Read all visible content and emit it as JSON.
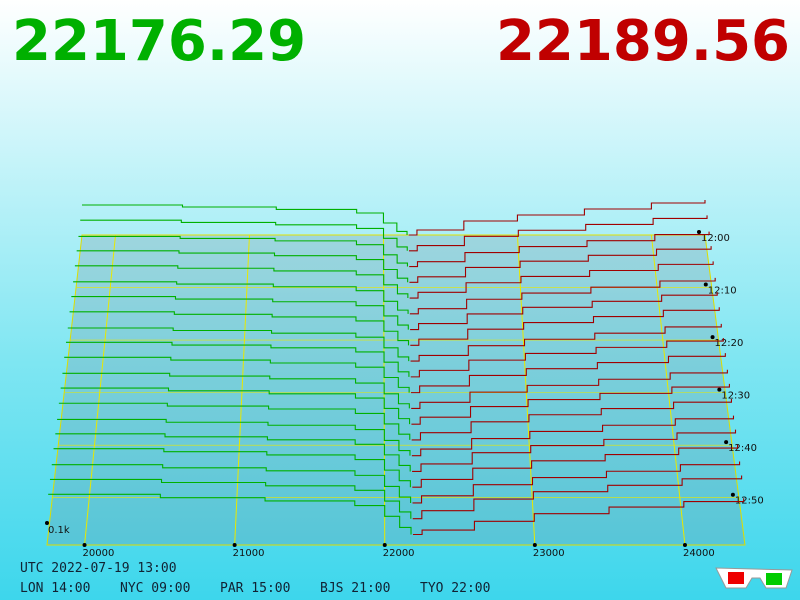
{
  "chart_data": {
    "type": "depth3d",
    "bid": 22176.29,
    "ask": 22189.56,
    "bid_color": "#00b000",
    "ask_color": "#a00000",
    "xlim": [
      19750,
      24400
    ],
    "xticks": [
      20000,
      21000,
      22000,
      23000,
      24000
    ],
    "tlim": [
      0,
      59
    ],
    "tticks": [
      {
        "value": 0,
        "label": "12:00"
      },
      {
        "value": 10,
        "label": "12:10"
      },
      {
        "value": 20,
        "label": "12:20"
      },
      {
        "value": 30,
        "label": "12:30"
      },
      {
        "value": 40,
        "label": "12:40"
      },
      {
        "value": 50,
        "label": "12:50"
      }
    ],
    "zlim": [
      0,
      200
    ],
    "zticks": [
      {
        "value": 100,
        "label": "0.1k"
      }
    ],
    "times": [
      0,
      3,
      6,
      9,
      12,
      15,
      18,
      21,
      24,
      27,
      30,
      33,
      36,
      39,
      42,
      45,
      48,
      51,
      54,
      57
    ],
    "bid_prices": [
      19750,
      20500,
      21200,
      21800,
      22000,
      22100,
      22176
    ],
    "ask_prices": [
      22189,
      22250,
      22600,
      23000,
      23500,
      24000,
      24400
    ],
    "bids": [
      [
        150,
        140,
        128,
        110,
        60,
        18,
        0
      ],
      [
        152,
        141,
        129,
        111,
        62,
        19,
        0
      ],
      [
        149,
        139,
        127,
        108,
        58,
        17,
        0
      ],
      [
        155,
        144,
        131,
        112,
        63,
        20,
        0
      ],
      [
        158,
        146,
        133,
        114,
        65,
        21,
        0
      ],
      [
        156,
        145,
        132,
        113,
        61,
        18,
        0
      ],
      [
        160,
        148,
        135,
        116,
        66,
        22,
        0
      ],
      [
        162,
        150,
        137,
        118,
        68,
        23,
        0
      ],
      [
        159,
        147,
        134,
        115,
        64,
        20,
        0
      ],
      [
        165,
        152,
        139,
        119,
        70,
        24,
        0
      ],
      [
        168,
        155,
        141,
        121,
        72,
        25,
        0
      ],
      [
        166,
        153,
        140,
        120,
        69,
        22,
        0
      ],
      [
        170,
        157,
        143,
        123,
        74,
        26,
        0
      ],
      [
        172,
        159,
        145,
        124,
        75,
        27,
        0
      ],
      [
        169,
        156,
        142,
        122,
        71,
        24,
        0
      ],
      [
        175,
        161,
        147,
        126,
        77,
        28,
        0
      ],
      [
        178,
        164,
        149,
        128,
        79,
        30,
        0
      ],
      [
        176,
        162,
        148,
        127,
        76,
        27,
        0
      ],
      [
        180,
        166,
        151,
        130,
        81,
        31,
        0
      ],
      [
        183,
        168,
        153,
        132,
        83,
        32,
        0
      ]
    ],
    "asks": [
      [
        0,
        25,
        70,
        100,
        130,
        160,
        175
      ],
      [
        0,
        26,
        72,
        102,
        131,
        161,
        176
      ],
      [
        0,
        24,
        69,
        99,
        128,
        158,
        173
      ],
      [
        0,
        27,
        73,
        104,
        133,
        163,
        178
      ],
      [
        0,
        28,
        75,
        106,
        135,
        165,
        180
      ],
      [
        0,
        25,
        71,
        101,
        130,
        160,
        175
      ],
      [
        0,
        29,
        76,
        108,
        137,
        167,
        182
      ],
      [
        0,
        30,
        78,
        110,
        139,
        169,
        184
      ],
      [
        0,
        27,
        74,
        105,
        134,
        164,
        179
      ],
      [
        0,
        31,
        80,
        112,
        141,
        171,
        186
      ],
      [
        0,
        32,
        82,
        114,
        143,
        173,
        188
      ],
      [
        0,
        29,
        77,
        109,
        138,
        168,
        183
      ],
      [
        0,
        33,
        83,
        116,
        145,
        175,
        190
      ],
      [
        0,
        34,
        85,
        118,
        147,
        177,
        192
      ],
      [
        0,
        31,
        80,
        113,
        142,
        172,
        187
      ],
      [
        0,
        35,
        87,
        120,
        149,
        179,
        194
      ],
      [
        0,
        36,
        88,
        122,
        151,
        181,
        196
      ],
      [
        0,
        33,
        84,
        117,
        146,
        176,
        191
      ],
      [
        0,
        37,
        90,
        124,
        153,
        183,
        198
      ],
      [
        0,
        20,
        60,
        95,
        125,
        150,
        165
      ]
    ]
  },
  "footer": {
    "utc": "UTC 2022-07-19 13:00",
    "clocks": [
      "LON 14:00",
      "NYC 09:00",
      "PAR 15:00",
      "BJS 21:00",
      "TYO 22:00"
    ]
  }
}
